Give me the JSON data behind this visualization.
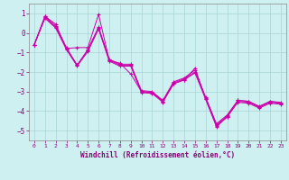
{
  "title": "Windchill (Refroidissement éolien,°C)",
  "bg_color": "#cff0f0",
  "grid_color": "#aad4d4",
  "line_color": "#cc00aa",
  "xlim": [
    -0.5,
    23.5
  ],
  "ylim": [
    -5.5,
    1.5
  ],
  "yticks": [
    1,
    0,
    -1,
    -2,
    -3,
    -4,
    -5
  ],
  "xticks": [
    0,
    1,
    2,
    3,
    4,
    5,
    6,
    7,
    8,
    9,
    10,
    11,
    12,
    13,
    14,
    15,
    16,
    17,
    18,
    19,
    20,
    21,
    22,
    23
  ],
  "lines": [
    {
      "x": [
        0,
        1,
        2,
        3,
        4,
        5,
        6,
        7,
        8,
        9,
        10,
        11,
        12,
        13,
        14,
        15,
        16,
        17,
        18,
        19,
        20,
        21,
        22,
        23
      ],
      "y": [
        -0.6,
        0.85,
        0.45,
        -0.8,
        -0.75,
        -0.75,
        0.95,
        -1.4,
        -1.55,
        -2.1,
        -3.0,
        -3.05,
        -3.5,
        -2.6,
        -2.4,
        -1.8,
        -3.4,
        -4.8,
        -4.3,
        -3.45,
        -3.5,
        -3.8,
        -3.5,
        -3.6
      ]
    },
    {
      "x": [
        0,
        1,
        2,
        3,
        4,
        5,
        6,
        7,
        8,
        9,
        10,
        11,
        12,
        13,
        14,
        15,
        16,
        17,
        18,
        19,
        20,
        21,
        22,
        23
      ],
      "y": [
        -0.6,
        0.85,
        0.35,
        -0.75,
        -1.65,
        -0.85,
        0.3,
        -1.35,
        -1.6,
        -1.6,
        -2.95,
        -3.0,
        -3.45,
        -2.5,
        -2.3,
        -1.9,
        -3.3,
        -4.65,
        -4.2,
        -3.45,
        -3.5,
        -3.75,
        -3.5,
        -3.55
      ]
    },
    {
      "x": [
        0,
        1,
        2,
        3,
        4,
        5,
        6,
        7,
        8,
        9,
        10,
        11,
        12,
        13,
        14,
        15,
        16,
        17,
        18,
        19,
        20,
        21,
        22,
        23
      ],
      "y": [
        -0.6,
        0.8,
        0.3,
        -0.8,
        -1.65,
        -0.9,
        0.25,
        -1.4,
        -1.65,
        -1.65,
        -3.0,
        -3.05,
        -3.5,
        -2.55,
        -2.35,
        -2.0,
        -3.35,
        -4.7,
        -4.25,
        -3.5,
        -3.55,
        -3.8,
        -3.55,
        -3.6
      ]
    },
    {
      "x": [
        0,
        1,
        2,
        3,
        4,
        5,
        6,
        7,
        8,
        9,
        10,
        11,
        12,
        13,
        14,
        15,
        16,
        17,
        18,
        19,
        20,
        21,
        22,
        23
      ],
      "y": [
        -0.6,
        0.75,
        0.25,
        -0.85,
        -1.7,
        -0.95,
        0.2,
        -1.45,
        -1.7,
        -1.7,
        -3.05,
        -3.1,
        -3.55,
        -2.6,
        -2.4,
        -2.05,
        -3.4,
        -4.75,
        -4.3,
        -3.55,
        -3.6,
        -3.85,
        -3.6,
        -3.65
      ]
    }
  ]
}
